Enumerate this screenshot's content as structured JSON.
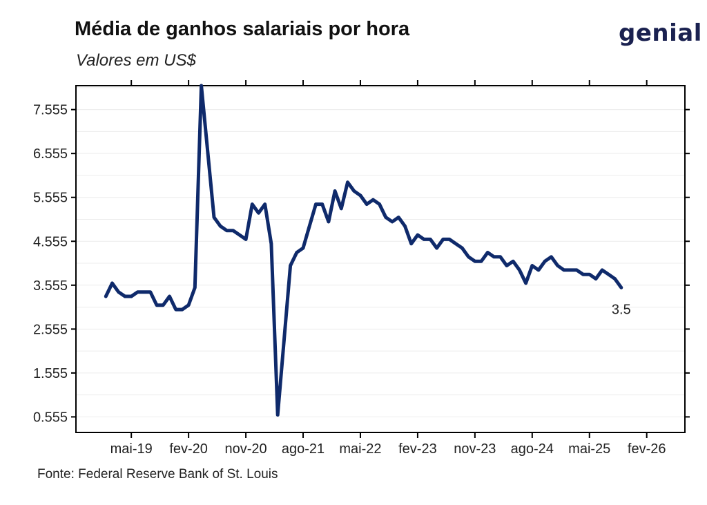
{
  "header": {
    "title": "Média de ganhos salariais por hora",
    "subtitle": "Valores em US$",
    "logo_text": "genial"
  },
  "footer": {
    "source": "Fonte: Federal Reserve Bank of St. Louis"
  },
  "colors": {
    "line": "#0f2a6b",
    "grid": "#ececec",
    "axis": "#000000"
  },
  "chart_data": {
    "type": "line",
    "title": "Média de ganhos salariais por hora",
    "subtitle": "Valores em US$",
    "xlabel": "",
    "ylabel": "",
    "grid": true,
    "ylim": [
      0.2,
      8.1
    ],
    "xlim": [
      -4.7,
      91
    ],
    "y_ticks": [
      0.555,
      1.555,
      2.555,
      3.555,
      4.555,
      5.555,
      6.555,
      7.555
    ],
    "y_tick_labels": [
      "0.555",
      "1.555",
      "2.555",
      "3.555",
      "4.555",
      "5.555",
      "6.555",
      "7.555"
    ],
    "x_ticks": [
      4,
      13,
      22,
      31,
      40,
      49,
      58,
      67,
      76,
      85
    ],
    "x_tick_labels": [
      "mai-19",
      "fev-20",
      "nov-20",
      "ago-21",
      "mai-22",
      "fev-23",
      "nov-23",
      "ago-24",
      "mai-25",
      "fev-26"
    ],
    "series": [
      {
        "name": "Média de ganhos salariais por hora",
        "x": [
          0,
          1,
          2,
          3,
          4,
          5,
          6,
          7,
          8,
          9,
          10,
          11,
          12,
          13,
          14,
          15,
          16,
          17,
          18,
          19,
          20,
          21,
          22,
          23,
          24,
          25,
          26,
          27,
          28,
          29,
          30,
          31,
          32,
          33,
          34,
          35,
          36,
          37,
          38,
          39,
          40,
          41,
          42,
          43,
          44,
          45,
          46,
          47,
          48,
          49,
          50,
          51,
          52,
          53,
          54,
          55,
          56,
          57,
          58,
          59,
          60,
          61,
          62,
          63,
          64,
          65,
          66,
          67,
          68,
          69,
          70,
          71,
          72,
          73,
          74,
          75,
          76,
          77,
          78,
          79,
          80,
          81
        ],
        "values": [
          3.3,
          3.6,
          3.4,
          3.3,
          3.3,
          3.4,
          3.4,
          3.4,
          3.1,
          3.1,
          3.3,
          3.0,
          3.0,
          3.1,
          3.5,
          8.1,
          6.6,
          5.1,
          4.9,
          4.8,
          4.8,
          4.7,
          4.6,
          5.4,
          5.2,
          5.4,
          4.5,
          0.6,
          2.3,
          4.0,
          4.3,
          4.4,
          4.9,
          5.4,
          5.4,
          5.0,
          5.7,
          5.3,
          5.9,
          5.7,
          5.6,
          5.4,
          5.5,
          5.4,
          5.1,
          5.0,
          5.1,
          4.9,
          4.5,
          4.7,
          4.6,
          4.6,
          4.4,
          4.6,
          4.6,
          4.5,
          4.4,
          4.2,
          4.1,
          4.1,
          4.3,
          4.2,
          4.2,
          4.0,
          4.1,
          3.9,
          3.6,
          4.0,
          3.9,
          4.1,
          4.2,
          4.0,
          3.9,
          3.9,
          3.9,
          3.8,
          3.8,
          3.7,
          3.9,
          3.8,
          3.7,
          3.5
        ]
      }
    ],
    "annotations": [
      {
        "text": "3.5",
        "series_index": 0,
        "point_index": 81
      }
    ]
  }
}
